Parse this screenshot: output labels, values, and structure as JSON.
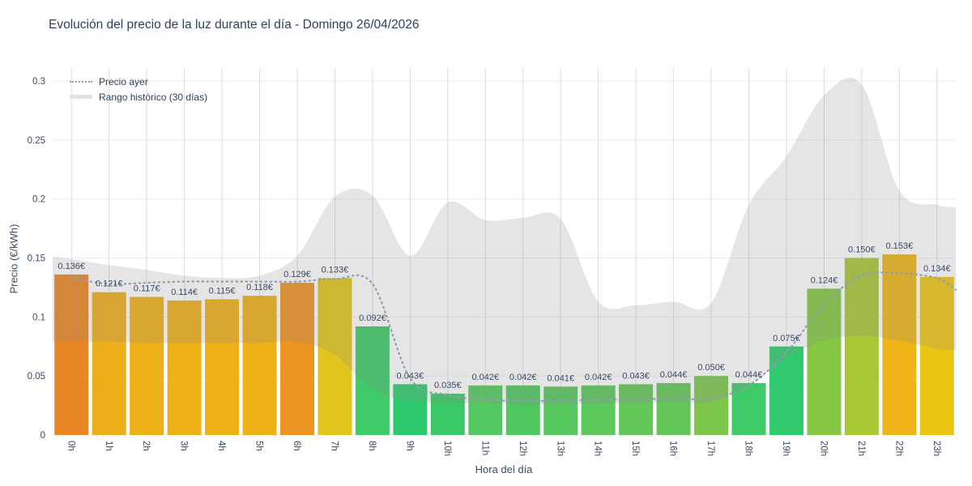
{
  "title": "Evolución del precio de la luz durante el día - Domingo 26/04/2026",
  "legend": {
    "items": [
      {
        "label": "Precio ayer",
        "swatch": "dotted-line"
      },
      {
        "label": "Rango histórico (30 días)",
        "swatch": "gray-band"
      }
    ]
  },
  "chart_data": {
    "type": "bar",
    "title": "Evolución del precio de la luz durante el día - Domingo 26/04/2026",
    "xlabel": "Hora del día",
    "ylabel": "Precio (€/kWh)",
    "ylim": [
      0,
      0.3
    ],
    "grid": true,
    "legend_position": "top-left",
    "ytick_values": [
      0,
      0.05,
      0.1,
      0.15,
      0.2,
      0.25,
      0.3
    ],
    "ytick_labels": [
      "0",
      "0.05",
      "0.1",
      "0.15",
      "0.2",
      "0.25",
      "0.3"
    ],
    "categories": [
      "0h",
      "1h",
      "2h",
      "3h",
      "4h",
      "5h",
      "6h",
      "7h",
      "8h",
      "9h",
      "10h",
      "11h",
      "12h",
      "13h",
      "14h",
      "15h",
      "16h",
      "17h",
      "18h",
      "19h",
      "20h",
      "21h",
      "22h",
      "23h"
    ],
    "bars": {
      "values": [
        0.136,
        0.121,
        0.117,
        0.114,
        0.115,
        0.118,
        0.129,
        0.133,
        0.092,
        0.043,
        0.035,
        0.042,
        0.042,
        0.041,
        0.042,
        0.043,
        0.044,
        0.05,
        0.044,
        0.075,
        0.124,
        0.15,
        0.153,
        0.134
      ],
      "labels": [
        "0.136€",
        "0.121€",
        "0.117€",
        "0.114€",
        "0.115€",
        "0.118€",
        "0.129€",
        "0.133€",
        "0.092€",
        "0.043€",
        "0.035€",
        "0.042€",
        "0.042€",
        "0.041€",
        "0.042€",
        "0.043€",
        "0.044€",
        "0.050€",
        "0.044€",
        "0.075€",
        "0.124€",
        "0.150€",
        "0.153€",
        "0.134€"
      ],
      "colors": [
        "#e98624",
        "#edae1c",
        "#eeb017",
        "#eeb017",
        "#eeb017",
        "#eeb118",
        "#ec9422",
        "#e2c51c",
        "#3ecb68",
        "#2fc96d",
        "#3bc867",
        "#55c961",
        "#50c75f",
        "#55c75e",
        "#5cc75b",
        "#63c757",
        "#63c757",
        "#7cc64b",
        "#3eca66",
        "#32ca6f",
        "#85c743",
        "#a8c734",
        "#eeb418",
        "#ecc414"
      ]
    },
    "yesterday_line": {
      "name": "Precio ayer",
      "values": [
        0.133,
        0.128,
        0.129,
        0.13,
        0.13,
        0.13,
        0.13,
        0.132,
        0.128,
        0.048,
        0.034,
        0.03,
        0.029,
        0.029,
        0.03,
        0.03,
        0.031,
        0.031,
        0.042,
        0.07,
        0.111,
        0.135,
        0.137,
        0.133
      ],
      "right_edge_value": 0.123
    },
    "historical_band": {
      "name": "Rango histórico (30 días)",
      "upper": [
        0.149,
        0.144,
        0.14,
        0.135,
        0.133,
        0.135,
        0.152,
        0.202,
        0.203,
        0.152,
        0.197,
        0.182,
        0.184,
        0.183,
        0.113,
        0.11,
        0.113,
        0.112,
        0.195,
        0.236,
        0.288,
        0.297,
        0.207,
        0.195
      ],
      "lower": [
        0.079,
        0.079,
        0.078,
        0.078,
        0.078,
        0.078,
        0.079,
        0.068,
        0.038,
        0.029,
        0.027,
        0.027,
        0.026,
        0.026,
        0.027,
        0.027,
        0.028,
        0.028,
        0.042,
        0.065,
        0.08,
        0.084,
        0.08,
        0.073
      ],
      "left_edge": {
        "upper": 0.151,
        "lower": 0.079
      },
      "right_edge": {
        "upper": 0.193,
        "lower": 0.072
      }
    }
  },
  "colors": {
    "background": "#ffffff",
    "band_fill": "#8a8a8a",
    "band_opacity": "0.22",
    "yesterday_line": "#8fa0b0",
    "grid_horizontal": "#e8edf3",
    "grid_vertical": "#d9dde2",
    "axis_text": "#3c4b68",
    "title_text": "#2f415f"
  }
}
